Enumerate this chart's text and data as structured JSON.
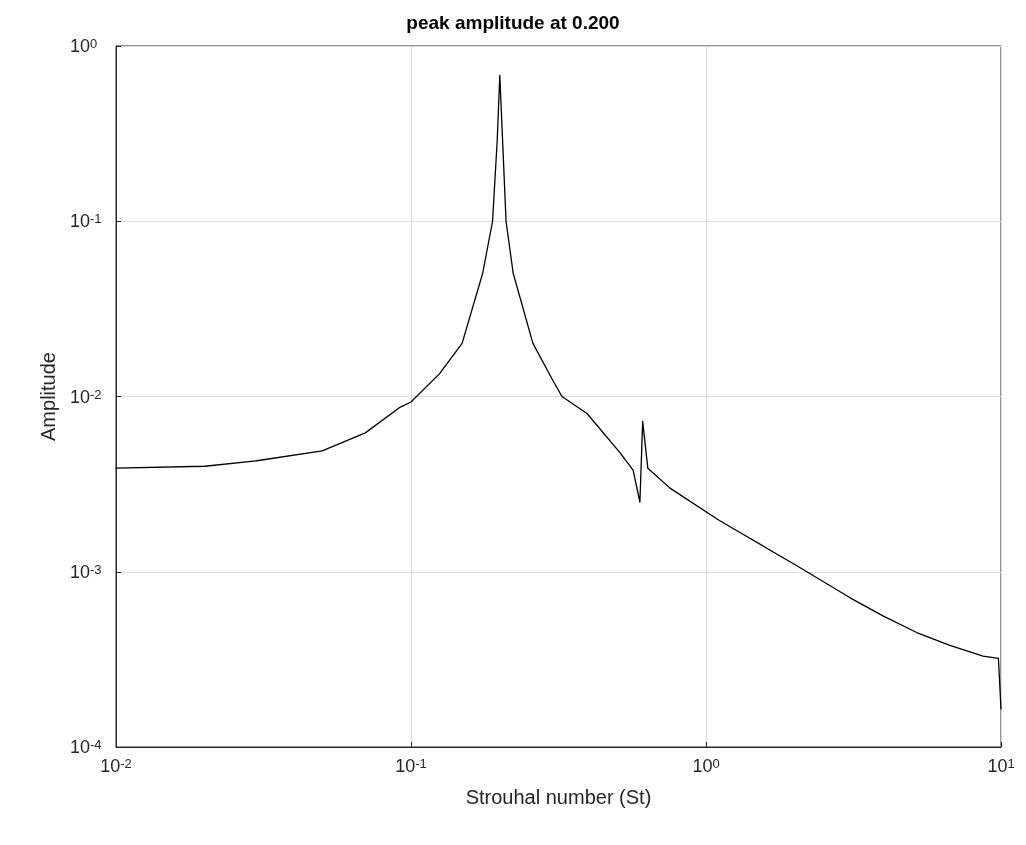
{
  "chart_data": {
    "type": "line",
    "title": "peak amplitude at 0.200",
    "xlabel": "Strouhal number (St)",
    "ylabel": "Amplitude",
    "x": [
      0.01,
      0.02,
      0.03,
      0.05,
      0.07,
      0.092,
      0.1,
      0.125,
      0.149,
      0.175,
      0.189,
      0.196,
      0.2,
      0.21,
      0.222,
      0.259,
      0.303,
      0.325,
      0.395,
      0.51,
      0.566,
      0.597,
      0.61,
      0.635,
      0.755,
      1.11,
      2,
      3.08,
      3.98,
      5.18,
      6.71,
      8.69,
      9.8,
      10
    ],
    "series": [
      {
        "color": "#000000",
        "values": [
          0.0039,
          0.004,
          0.0043,
          0.0049,
          0.0062,
          0.0087,
          0.0093,
          0.0135,
          0.0201,
          0.0505,
          0.1,
          0.29,
          0.68,
          0.1,
          0.0505,
          0.0201,
          0.0123,
          0.01,
          0.008,
          0.0048,
          0.0038,
          0.0025,
          0.0072,
          0.0039,
          0.003,
          0.00196,
          0.0011,
          0.00071,
          0.00056,
          0.00045,
          0.00038,
          0.00033,
          0.00032,
          0.000165
        ]
      }
    ],
    "xlim": [
      0.01,
      10
    ],
    "ylim": [
      0.0001,
      1
    ],
    "xticks": [
      {
        "value": 0.01,
        "label": "10$^{-2}$"
      },
      {
        "value": 0.1,
        "label": "10$^{-1}$"
      },
      {
        "value": 1,
        "label": "10$^{0}$"
      },
      {
        "value": 10,
        "label": "10$^{1}$"
      }
    ],
    "yticks": [
      {
        "value": 0.0001,
        "label": "10$^{-4}$"
      },
      {
        "value": 0.001,
        "label": "10$^{-3}$"
      },
      {
        "value": 0.01,
        "label": "10$^{-2}$"
      },
      {
        "value": 0.1,
        "label": "10$^{-1}$"
      },
      {
        "value": 1,
        "label": "10$^{0}$"
      }
    ],
    "log": "xy",
    "grid": true,
    "marker": "none",
    "line_style": "solid"
  }
}
